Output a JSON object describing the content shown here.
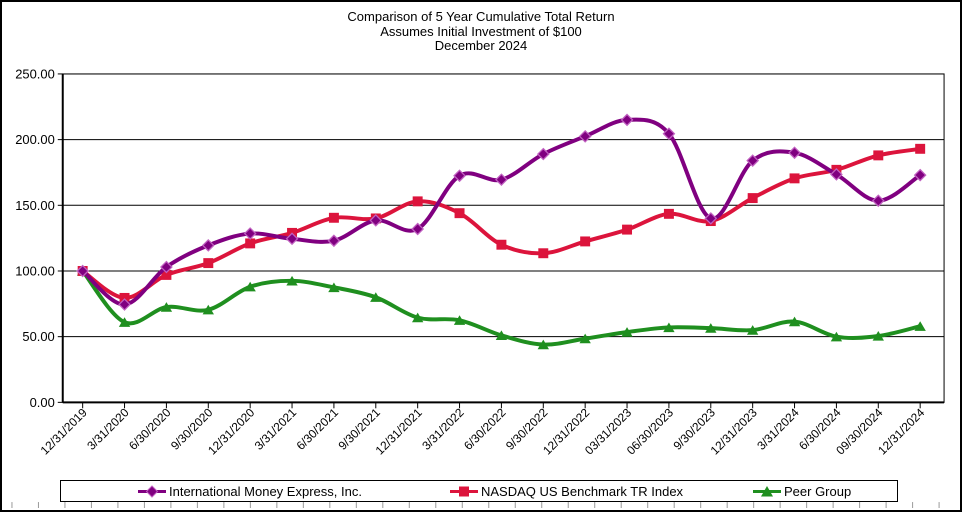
{
  "title": {
    "line1": "Comparison of 5 Year Cumulative Total Return",
    "line2": "Assumes Initial Investment of $100",
    "line3": "December 2024"
  },
  "chart_data": {
    "type": "line",
    "smoothed": true,
    "categories": [
      "12/31/2019",
      "3/31/2020",
      "6/30/2020",
      "9/30/2020",
      "12/31/2020",
      "3/31/2021",
      "6/30/2021",
      "9/30/2021",
      "12/31/2021",
      "3/31/2022",
      "6/30/2022",
      "9/30/2022",
      "12/31/2022",
      "03/31/2023",
      "06/30/2023",
      "9/30/2023",
      "12/31/2023",
      "3/31/2024",
      "6/30/2024",
      "09/30/2024",
      "12/31/2024"
    ],
    "series": [
      {
        "name": "International Money Express, Inc.",
        "color": "#800080",
        "marker": "diamond",
        "values": [
          100,
          74.5,
          103,
          119.5,
          128.5,
          124.5,
          123,
          138.5,
          132,
          172.5,
          169.5,
          189,
          202.5,
          215,
          204.5,
          140,
          184,
          190,
          173.5,
          153.5,
          173
        ]
      },
      {
        "name": "NASDAQ US Benchmark TR Index",
        "color": "#DC143C",
        "marker": "square",
        "values": [
          100,
          79.5,
          97,
          106,
          121,
          129,
          140.5,
          140,
          153,
          144,
          120,
          113.5,
          122.5,
          131.5,
          143.5,
          138,
          155.5,
          170.5,
          177,
          188,
          193
        ]
      },
      {
        "name": "Peer Group",
        "color": "#1F8F1F",
        "marker": "triangle",
        "values": [
          100,
          61,
          72.5,
          70.5,
          88,
          92.5,
          87.5,
          80,
          64.5,
          62.5,
          51,
          44,
          48.5,
          53.5,
          57,
          56.5,
          55,
          61.5,
          50,
          50.5,
          58
        ]
      }
    ],
    "ylim": [
      0,
      250
    ],
    "ytick_step": 50,
    "ytick_labels": [
      "0.00",
      "50.00",
      "100.00",
      "150.00",
      "200.00",
      "250.00"
    ],
    "grid": true,
    "legend_position": "bottom"
  }
}
